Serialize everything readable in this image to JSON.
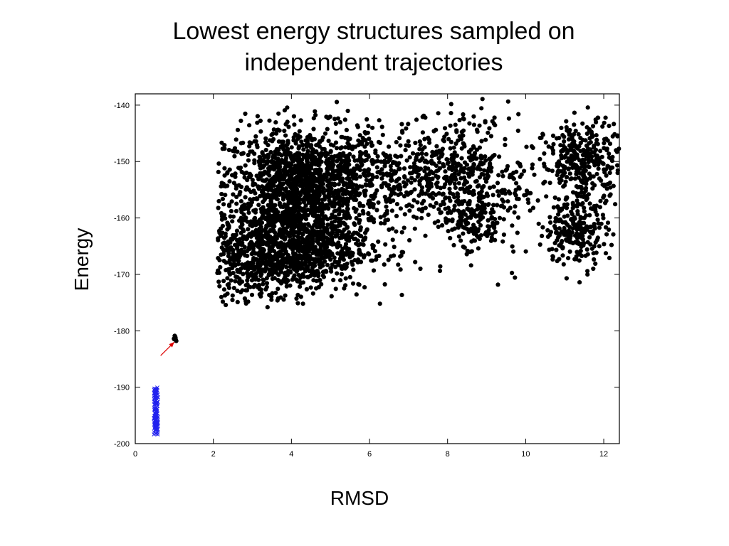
{
  "title_lines": [
    "Lowest energy structures sampled on",
    "independent trajectories"
  ],
  "chart_data": {
    "type": "scatter",
    "title": "Lowest energy structures sampled on independent trajectories",
    "xlabel": "RMSD",
    "ylabel": "Energy",
    "xlim": [
      0,
      12.4
    ],
    "ylim": [
      -200,
      -138
    ],
    "xticks": [
      "0",
      "2",
      "4",
      "6",
      "8",
      "10",
      "12"
    ],
    "yticks": [
      "-140",
      "-150",
      "-160",
      "-170",
      "-180",
      "-190",
      "-200"
    ],
    "grid": false,
    "legend": "none",
    "clusters": [
      {
        "cx": 4.3,
        "cy": -154,
        "sx": 1.0,
        "sy": 5.0,
        "n": 1400
      },
      {
        "cx": 4.0,
        "cy": -165,
        "sx": 1.0,
        "sy": 4.0,
        "n": 1000
      },
      {
        "cx": 3.0,
        "cy": -168,
        "sx": 0.5,
        "sy": 3.5,
        "n": 200
      },
      {
        "cx": 6.4,
        "cy": -152,
        "sx": 0.7,
        "sy": 4.5,
        "n": 180
      },
      {
        "cx": 7.6,
        "cy": -155,
        "sx": 0.6,
        "sy": 5.0,
        "n": 150
      },
      {
        "cx": 8.4,
        "cy": -150,
        "sx": 0.6,
        "sy": 4.0,
        "n": 230
      },
      {
        "cx": 8.7,
        "cy": -160,
        "sx": 0.4,
        "sy": 3.5,
        "n": 170
      },
      {
        "cx": 9.5,
        "cy": -155,
        "sx": 0.5,
        "sy": 6.0,
        "n": 80
      },
      {
        "cx": 11.5,
        "cy": -150,
        "sx": 0.5,
        "sy": 3.5,
        "n": 330
      },
      {
        "cx": 11.3,
        "cy": -162,
        "sx": 0.4,
        "sy": 3.2,
        "n": 230
      },
      {
        "cx": 2.0,
        "cy": -158,
        "sx": 0.5,
        "sy": 5.0,
        "n": 35
      }
    ],
    "series": [
      {
        "type": "scatter",
        "marker": "circle",
        "color": "#000000",
        "points": [
          [
            1.02,
            -181.0
          ],
          [
            1.0,
            -181.5
          ],
          [
            1.05,
            -181.8
          ],
          [
            1.03,
            -181.2
          ],
          [
            1.01,
            -180.9
          ],
          [
            0.99,
            -181.4
          ],
          [
            1.04,
            -181.6
          ],
          [
            1.02,
            -181.3
          ]
        ]
      },
      {
        "type": "scatter",
        "marker": "x",
        "color": "#2222ee",
        "x_center": 0.53,
        "x_spread": 0.05,
        "y_min": -198.6,
        "y_max": -190.0,
        "n": 140
      }
    ],
    "annotations": [
      {
        "type": "arrow",
        "color": "#dd0000",
        "from": [
          0.65,
          -184.4
        ],
        "to": [
          1.0,
          -182.0
        ]
      }
    ]
  }
}
